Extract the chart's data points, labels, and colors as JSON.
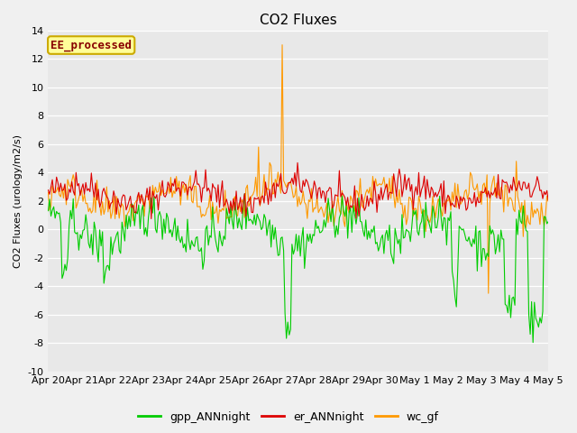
{
  "title": "CO2 Fluxes",
  "ylabel": "CO2 Fluxes (urology/m2/s)",
  "ylim": [
    -10,
    14
  ],
  "yticks": [
    -10,
    -8,
    -6,
    -4,
    -2,
    0,
    2,
    4,
    6,
    8,
    10,
    12,
    14
  ],
  "background_color": "#e8e8e8",
  "annotation_text": "EE_processed",
  "annotation_box_color": "#ffff99",
  "annotation_box_edge": "#ccaa00",
  "annotation_text_color": "#880000",
  "line_colors": {
    "gpp_ANNnight": "#00cc00",
    "er_ANNnight": "#dd0000",
    "wc_gf": "#ff9900"
  },
  "legend_labels": [
    "gpp_ANNnight",
    "er_ANNnight",
    "wc_gf"
  ],
  "n_points": 360,
  "xtick_labels": [
    "Apr 20",
    "Apr 21",
    "Apr 22",
    "Apr 23",
    "Apr 24",
    "Apr 25",
    "Apr 26",
    "Apr 27",
    "Apr 28",
    "Apr 29",
    "Apr 30",
    "May 1",
    "May 2",
    "May 3",
    "May 4",
    "May 5"
  ],
  "font_size_title": 11,
  "font_size_axis": 8,
  "font_size_legend": 9,
  "font_size_annotation": 9
}
